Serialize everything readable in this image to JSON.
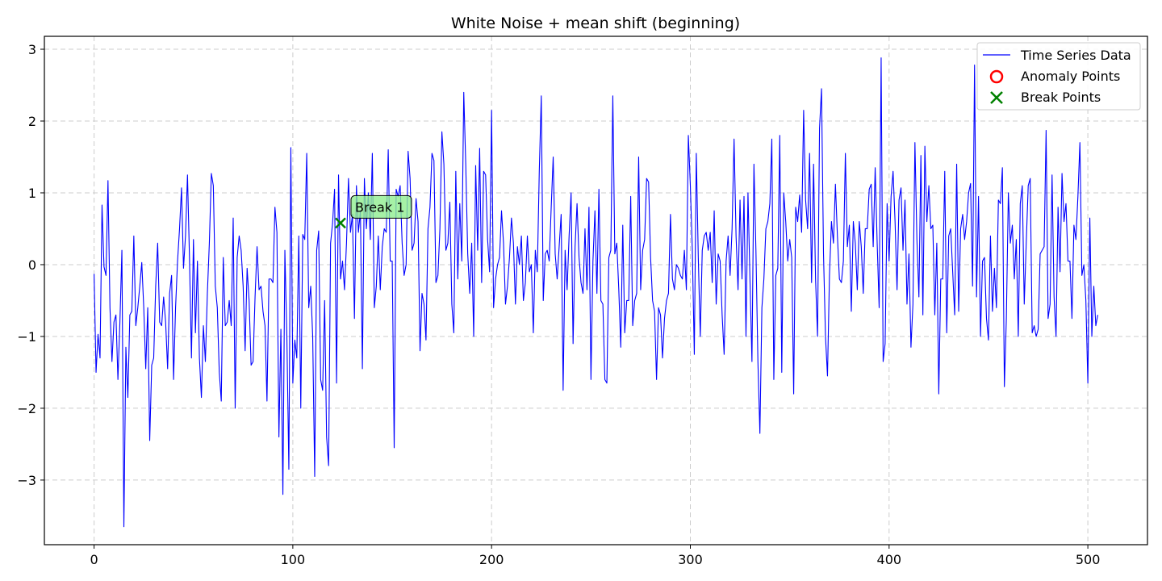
{
  "chart_data": {
    "type": "line",
    "title": "White Noise + mean shift (beginning)",
    "xlabel": "",
    "ylabel": "",
    "xlim": [
      -25,
      530
    ],
    "ylim": [
      -3.9,
      3.18
    ],
    "xticks": [
      0,
      100,
      200,
      300,
      400,
      500
    ],
    "xtick_labels": [
      "0",
      "100",
      "200",
      "300",
      "400",
      "500"
    ],
    "yticks": [
      3,
      2,
      1,
      0,
      -1,
      -2,
      -3
    ],
    "ytick_labels": [
      "3",
      "2",
      "1",
      "0",
      "−1",
      "−2",
      "−3"
    ],
    "grid": true,
    "legend_position": "top-right",
    "legend": [
      {
        "label": "Time Series Data",
        "marker": "line",
        "color": "#0000ff"
      },
      {
        "label": "Anomaly Points",
        "marker": "circle",
        "color": "#ff0000"
      },
      {
        "label": "Break Points",
        "marker": "x",
        "color": "#008000"
      }
    ],
    "series": [
      {
        "name": "Time Series Data",
        "color": "#0000ff",
        "x_start": 0,
        "x_step": 1,
        "values": [
          -0.13,
          -1.5,
          -0.97,
          -1.3,
          0.83,
          -0.03,
          -0.15,
          1.17,
          -0.6,
          -1.35,
          -0.8,
          -0.7,
          -1.6,
          -0.8,
          0.2,
          -3.65,
          -1.15,
          -1.85,
          -0.7,
          -0.65,
          0.4,
          -0.85,
          -0.6,
          -0.3,
          0.03,
          -0.6,
          -1.45,
          -0.6,
          -2.45,
          -1.4,
          -1.3,
          -0.3,
          0.3,
          -0.8,
          -0.85,
          -0.45,
          -0.8,
          -1.45,
          -0.4,
          -0.15,
          -1.6,
          -0.6,
          0.05,
          0.5,
          1.07,
          -0.05,
          0.4,
          1.25,
          0.1,
          -1.3,
          0.35,
          -0.95,
          0.05,
          -1.3,
          -1.85,
          -0.85,
          -1.35,
          -0.4,
          0.3,
          1.27,
          1.1,
          -0.3,
          -0.6,
          -1.5,
          -1.9,
          0.1,
          -0.85,
          -0.8,
          -0.5,
          -0.85,
          0.65,
          -2.0,
          0.1,
          0.4,
          0.2,
          -0.3,
          -1.2,
          -0.05,
          -0.5,
          -1.4,
          -1.35,
          -0.45,
          0.25,
          -0.35,
          -0.3,
          -0.65,
          -0.85,
          -1.9,
          -0.2,
          -0.2,
          -0.25,
          0.8,
          0.45,
          -2.4,
          -0.9,
          -3.2,
          0.2,
          -1.0,
          -2.85,
          1.63,
          -1.65,
          -1.05,
          -1.3,
          0.4,
          -2.0,
          0.42,
          0.35,
          1.55,
          -0.6,
          -0.3,
          -1.0,
          -2.95,
          0.2,
          0.47,
          -1.6,
          -1.75,
          -0.5,
          -2.4,
          -2.8,
          0.3,
          0.58,
          1.05,
          -1.65,
          1.25,
          -0.2,
          0.05,
          -0.35,
          0.3,
          1.2,
          0.45,
          0.7,
          -0.75,
          1.1,
          0.45,
          0.75,
          -1.45,
          1.2,
          0.5,
          1.0,
          0.35,
          1.55,
          -0.6,
          -0.3,
          0.4,
          -0.35,
          0.25,
          0.5,
          0.45,
          1.6,
          0.05,
          0.05,
          -2.55,
          1.05,
          0.95,
          1.1,
          0.3,
          -0.15,
          0.0,
          1.58,
          1.2,
          0.2,
          0.3,
          0.92,
          0.6,
          -1.2,
          -0.4,
          -0.55,
          -1.05,
          0.5,
          0.8,
          1.55,
          1.45,
          -0.25,
          -0.15,
          0.5,
          1.85,
          1.4,
          0.2,
          0.3,
          0.87,
          -0.55,
          -0.95,
          1.3,
          -0.2,
          0.85,
          0.05,
          2.4,
          1.4,
          0.15,
          -0.4,
          0.3,
          -1.0,
          1.38,
          0.2,
          1.62,
          -0.25,
          1.3,
          1.25,
          0.35,
          -0.1,
          2.15,
          -0.6,
          -0.2,
          0.0,
          0.1,
          0.75,
          0.3,
          -0.55,
          -0.3,
          0.1,
          0.65,
          0.3,
          -0.55,
          0.25,
          0.0,
          0.4,
          -0.5,
          -0.25,
          0.4,
          -0.1,
          0.0,
          -0.95,
          0.2,
          -0.1,
          1.3,
          2.35,
          -0.5,
          0.15,
          0.2,
          0.05,
          0.8,
          1.5,
          0.15,
          -0.2,
          0.25,
          0.7,
          -1.75,
          0.2,
          -0.35,
          0.4,
          1.0,
          -1.1,
          0.25,
          0.85,
          0.1,
          -0.25,
          -0.4,
          0.5,
          -0.35,
          0.8,
          -1.6,
          0.05,
          0.75,
          -0.4,
          1.05,
          -0.5,
          -0.55,
          -1.6,
          -1.65,
          0.1,
          0.2,
          2.35,
          0.15,
          0.3,
          -0.35,
          -1.15,
          0.55,
          -0.95,
          -0.5,
          -0.5,
          0.95,
          -0.85,
          -0.5,
          -0.4,
          1.5,
          -0.35,
          0.2,
          0.35,
          1.2,
          1.15,
          0.1,
          -0.5,
          -0.65,
          -1.6,
          -0.6,
          -0.7,
          -1.3,
          -0.75,
          -0.5,
          -0.4,
          0.7,
          -0.2,
          -0.35,
          0.0,
          -0.05,
          -0.15,
          -0.2,
          0.2,
          -0.35,
          1.8,
          1.1,
          0.2,
          -1.25,
          1.55,
          0.1,
          -1.0,
          0.2,
          0.4,
          0.45,
          0.2,
          0.45,
          -0.25,
          0.75,
          -0.55,
          0.15,
          0.05,
          -0.7,
          -1.25,
          0.05,
          0.4,
          -0.15,
          0.5,
          1.75,
          0.4,
          -0.35,
          0.9,
          -0.2,
          0.95,
          -1.0,
          1.0,
          -0.2,
          -1.35,
          1.4,
          0.2,
          -1.35,
          -2.35,
          -0.6,
          -0.2,
          0.5,
          0.6,
          0.85,
          1.75,
          -1.6,
          -0.15,
          -0.05,
          1.8,
          -1.5,
          1.0,
          0.6,
          0.05,
          0.35,
          0.1,
          -1.8,
          0.8,
          0.6,
          0.97,
          0.45,
          2.15,
          0.9,
          0.5,
          1.55,
          -0.25,
          1.4,
          -0.2,
          -1.0,
          1.9,
          2.45,
          0.15,
          -1.0,
          -1.55,
          -0.15,
          0.6,
          0.3,
          1.12,
          0.4,
          -0.2,
          -0.25,
          0.05,
          1.55,
          0.25,
          0.55,
          -0.65,
          0.6,
          0.3,
          -0.35,
          0.6,
          0.25,
          -0.4,
          0.5,
          0.5,
          1.05,
          1.12,
          0.25,
          1.35,
          0.3,
          -0.6,
          2.88,
          -1.35,
          -1.1,
          0.85,
          0.05,
          0.95,
          1.3,
          0.6,
          -0.35,
          0.9,
          1.07,
          0.2,
          0.9,
          -0.55,
          0.15,
          -1.15,
          -0.55,
          1.7,
          0.35,
          -0.45,
          1.52,
          -0.7,
          1.65,
          0.6,
          1.1,
          0.5,
          0.55,
          -0.7,
          0.3,
          -1.8,
          -0.2,
          -0.2,
          1.3,
          -0.95,
          0.4,
          0.5,
          -0.1,
          -0.7,
          1.4,
          -0.65,
          0.5,
          0.7,
          0.35,
          0.6,
          1.0,
          1.13,
          -0.3,
          2.78,
          -0.45,
          0.95,
          -1.0,
          0.05,
          0.1,
          -0.75,
          -1.05,
          0.4,
          -0.65,
          -0.05,
          -0.6,
          0.9,
          0.85,
          1.35,
          -1.7,
          -0.75,
          1.0,
          0.3,
          0.55,
          -0.2,
          0.35,
          -1.0,
          0.85,
          1.1,
          -0.55,
          0.3,
          1.1,
          1.2,
          -0.95,
          -0.85,
          -1.0,
          -0.9,
          0.15,
          0.2,
          0.25,
          1.87,
          -0.75,
          -0.55,
          1.25,
          -0.45,
          -1.0,
          0.8,
          -0.1,
          1.27,
          0.6,
          0.85,
          0.05,
          0.05,
          -0.75,
          0.55,
          0.35,
          0.95,
          1.7,
          -0.15,
          0.0,
          -0.5,
          -1.65,
          0.65,
          -1.0,
          -0.3,
          -0.85,
          -0.7
        ]
      }
    ],
    "break_points": [
      {
        "x": 124,
        "y": 0.58,
        "label": "Break 1"
      }
    ],
    "anomaly_points": []
  }
}
